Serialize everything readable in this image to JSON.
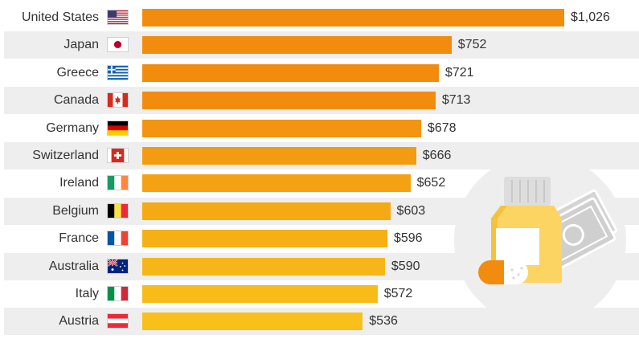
{
  "chart_data": {
    "type": "bar",
    "orientation": "horizontal",
    "categories": [
      "United States",
      "Japan",
      "Greece",
      "Canada",
      "Germany",
      "Switzerland",
      "Ireland",
      "Belgium",
      "France",
      "Australia",
      "Italy",
      "Austria"
    ],
    "values": [
      1026,
      752,
      721,
      713,
      678,
      666,
      652,
      603,
      596,
      590,
      572,
      536
    ],
    "value_labels": [
      "$1,026",
      "$752",
      "$721",
      "$713",
      "$678",
      "$666",
      "$652",
      "$603",
      "$596",
      "$590",
      "$572",
      "$536"
    ],
    "flags": [
      "flag-us-icon",
      "flag-japan-icon",
      "flag-greece-icon",
      "flag-canada-icon",
      "flag-germany-icon",
      "flag-switzerland-icon",
      "flag-ireland-icon",
      "flag-belgium-icon",
      "flag-france-icon",
      "flag-australia-icon",
      "flag-italy-icon",
      "flag-austria-icon"
    ],
    "bar_colors": [
      "#f28c0f",
      "#f28c0f",
      "#f28c0f",
      "#f28c0f",
      "#f39510",
      "#f39c11",
      "#f4a213",
      "#f5a914",
      "#f6b016",
      "#f7b617",
      "#f8bb19",
      "#f9c01b"
    ],
    "xlim": [
      0,
      1026
    ],
    "grid": false,
    "legend": "none",
    "title": "",
    "xlabel": "",
    "ylabel": ""
  },
  "illustration": {
    "name": "medicine-money-icon",
    "colors": {
      "circle": "#eeeeee",
      "bottle": "#fcd462",
      "cap": "#dddddd",
      "label": "#ffffff",
      "capsule": "#f28c0f",
      "money": "#cfcfcf"
    }
  }
}
